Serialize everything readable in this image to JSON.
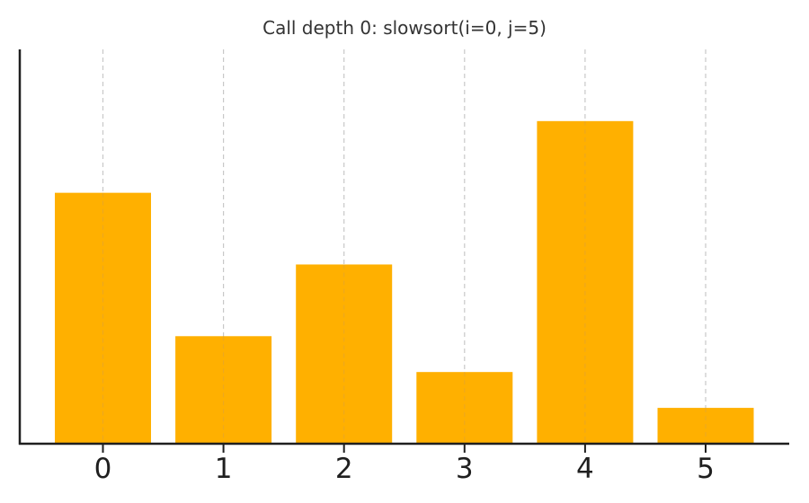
{
  "chart_data": {
    "type": "bar",
    "title": "Call depth 0: slowsort(i=0, j=5)",
    "xlabel": "",
    "ylabel": "",
    "categories": [
      "0",
      "1",
      "2",
      "3",
      "4",
      "5"
    ],
    "values": [
      7,
      3,
      5,
      2,
      9,
      1
    ],
    "ylim": [
      0,
      11
    ],
    "grid": "vertical-dashed",
    "bar_color": "#FFB000",
    "grid_color": "#c8c8c8",
    "axis_color": "#1f1f1f",
    "legend": "none"
  }
}
